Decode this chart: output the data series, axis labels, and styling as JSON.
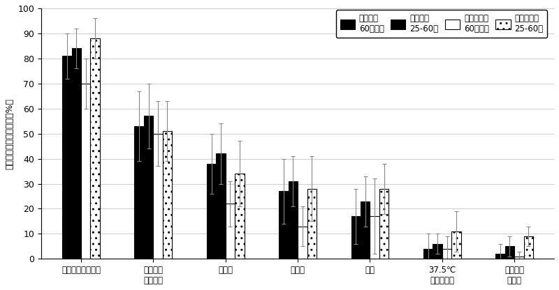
{
  "categories": [
    "何らかの局所症状",
    "何らかの\n全身症状",
    "だるさ",
    "筋肉痛",
    "頭痛",
    "37.5℃\n以上の発熱",
    "リンパ節\nの腮れ"
  ],
  "series": [
    {
      "label": "モデルナ\n60歳以上",
      "values": [
        81,
        53,
        38,
        27,
        17,
        4,
        2
      ],
      "errors": [
        9,
        14,
        12,
        13,
        11,
        6,
        4
      ],
      "facecolor": "#000000",
      "hatch": null,
      "edgecolor": "#000000"
    },
    {
      "label": "モデルナ\n25-60歳",
      "values": [
        84,
        57,
        42,
        31,
        23,
        6,
        5
      ],
      "errors": [
        8,
        13,
        12,
        10,
        10,
        4,
        4
      ],
      "facecolor": "#000000",
      "hatch": "..",
      "edgecolor": "#000000"
    },
    {
      "label": "ファイザー\n60歳以上",
      "values": [
        70,
        50,
        22,
        13,
        17,
        4,
        1
      ],
      "errors": [
        10,
        13,
        9,
        8,
        15,
        5,
        2
      ],
      "facecolor": "#ffffff",
      "hatch": null,
      "edgecolor": "#000000"
    },
    {
      "label": "ファイザー\n25-60歳",
      "values": [
        88,
        51,
        34,
        28,
        28,
        11,
        9
      ],
      "errors": [
        8,
        12,
        13,
        13,
        10,
        8,
        4
      ],
      "facecolor": "#ffffff",
      "hatch": "..",
      "edgecolor": "#000000"
    }
  ],
  "ylabel": "副反応が見られた割合（%）",
  "ylim": [
    0,
    100
  ],
  "yticks": [
    0,
    10,
    20,
    30,
    40,
    50,
    60,
    70,
    80,
    90,
    100
  ],
  "background_color": "#ffffff",
  "bar_width": 0.13,
  "figsize": [
    8.0,
    4.16
  ],
  "dpi": 100
}
